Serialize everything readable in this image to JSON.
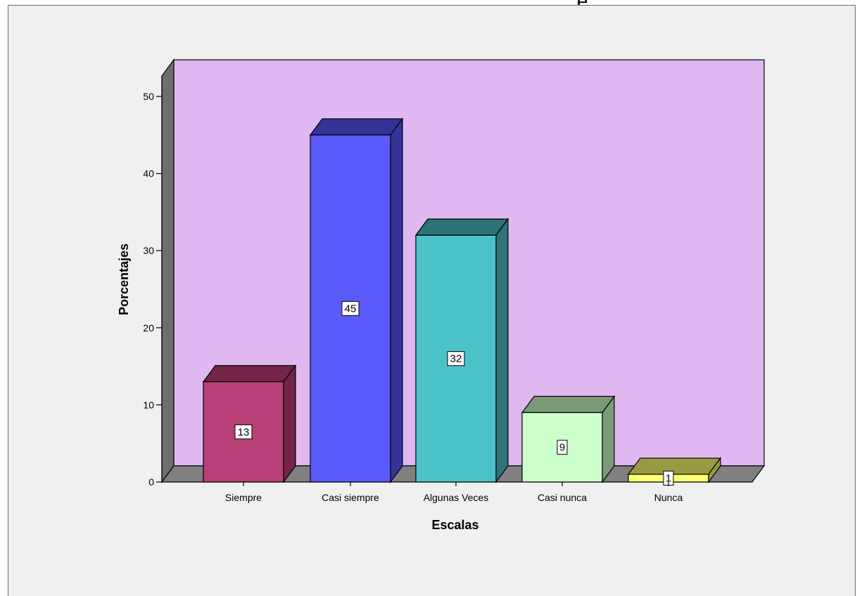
{
  "page": {
    "top_title": "e"
  },
  "chart_data": {
    "type": "bar",
    "title": "",
    "xlabel": "Escalas",
    "ylabel": "Porcentajes",
    "categories": [
      "Siempre",
      "Casi siempre",
      "Algunas Veces",
      "Casi nunca",
      "Nunca"
    ],
    "values": [
      13,
      45,
      32,
      9,
      1
    ],
    "data_labels": [
      "13",
      "45",
      "32",
      "9",
      "1"
    ],
    "yticks": [
      0,
      10,
      20,
      30,
      40,
      50
    ],
    "ytick_labels": [
      "0",
      "10",
      "20",
      "30",
      "40",
      "50"
    ],
    "ylim": [
      0,
      55
    ],
    "grid": false,
    "legend": "none",
    "style": "3d",
    "colors": {
      "plot_background": "#dfb8f2",
      "floor": "#808080",
      "side_wall": "#6e6e6e",
      "bars": [
        {
          "front": "#b93f79",
          "top": "#742447",
          "side": "#742447"
        },
        {
          "front": "#5b5bfb",
          "top": "#333399",
          "side": "#333399"
        },
        {
          "front": "#4cc3c9",
          "top": "#2d7377",
          "side": "#2d7377"
        },
        {
          "front": "#ccffcc",
          "top": "#7a9a7a",
          "side": "#7a9a7a"
        },
        {
          "front": "#ffff73",
          "top": "#999944",
          "side": "#999944"
        }
      ]
    }
  }
}
